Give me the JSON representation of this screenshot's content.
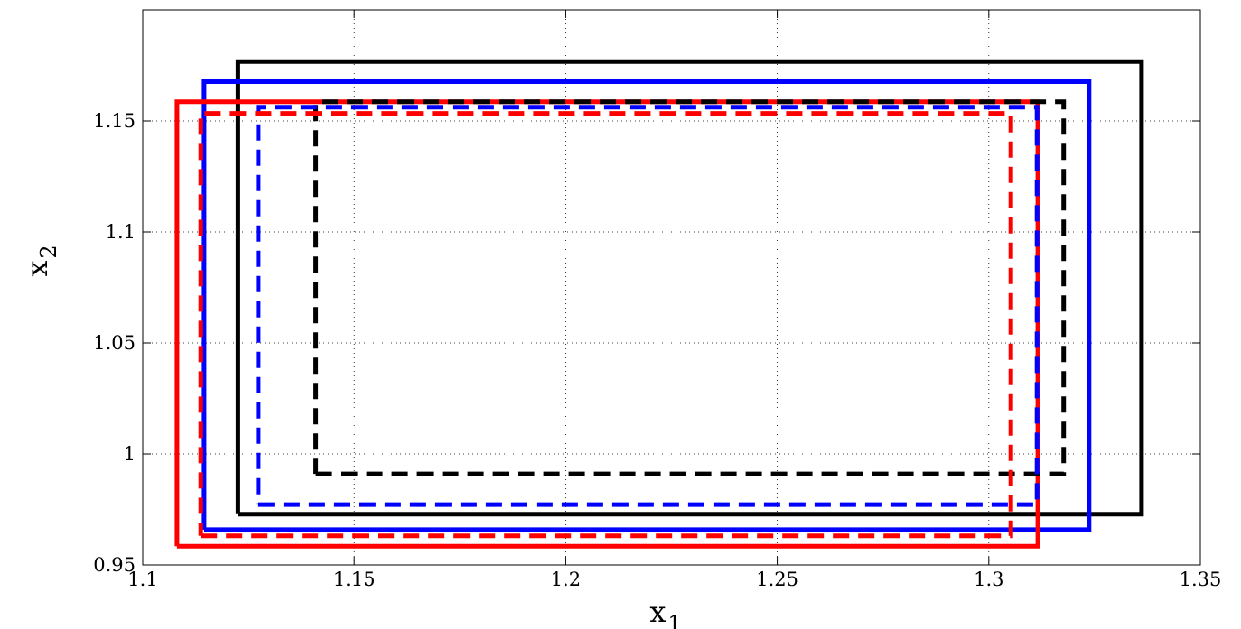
{
  "chart_data": {
    "type": "line",
    "title": "",
    "xlabel": "x",
    "xlabel_sub": "1",
    "ylabel": "x",
    "ylabel_sub": "2",
    "xlim": [
      1.1,
      1.35
    ],
    "ylim": [
      0.95,
      1.2
    ],
    "xticks": [
      1.1,
      1.15,
      1.2,
      1.25,
      1.3,
      1.35
    ],
    "xtick_labels": [
      "1.1",
      "1.15",
      "1.2",
      "1.25",
      "1.3",
      "1.35"
    ],
    "yticks": [
      0.95,
      1.0,
      1.05,
      1.1,
      1.15
    ],
    "ytick_labels": [
      "0.95",
      "1",
      "1.05",
      "1.1",
      "1.15"
    ],
    "grid": true,
    "grid_style": "dotted",
    "legend": null,
    "series": [
      {
        "color": "#000000",
        "style": "solid",
        "x": [
          1.1225,
          1.3361,
          1.3361,
          1.1225,
          1.1225
        ],
        "y": [
          0.9729,
          0.9729,
          1.1767,
          1.1767,
          0.9729
        ]
      },
      {
        "color": "#0000ff",
        "style": "solid",
        "x": [
          1.1145,
          1.3237,
          1.3237,
          1.1145,
          1.1145
        ],
        "y": [
          0.9659,
          0.9659,
          1.1677,
          1.1677,
          0.9659
        ]
      },
      {
        "color": "#ff0000",
        "style": "solid",
        "x": [
          1.1081,
          1.3116,
          1.3116,
          1.1081,
          1.1081
        ],
        "y": [
          0.9584,
          0.9584,
          1.1586,
          1.1586,
          0.9584
        ]
      },
      {
        "color": "#000000",
        "style": "dashed",
        "x": [
          1.1409,
          1.3177,
          1.3177,
          1.1409,
          1.1409
        ],
        "y": [
          0.991,
          0.991,
          1.1586,
          1.1586,
          0.991
        ]
      },
      {
        "color": "#0000ff",
        "style": "dashed",
        "x": [
          1.1273,
          1.3114,
          1.3114,
          1.1273,
          1.1273
        ],
        "y": [
          0.9772,
          0.9772,
          1.1562,
          1.1562,
          0.9772
        ]
      },
      {
        "color": "#ff0000",
        "style": "dashed",
        "x": [
          1.1137,
          1.3052,
          1.3052,
          1.1137,
          1.1137
        ],
        "y": [
          0.9631,
          0.9631,
          1.1534,
          1.1534,
          0.9631
        ]
      }
    ]
  }
}
